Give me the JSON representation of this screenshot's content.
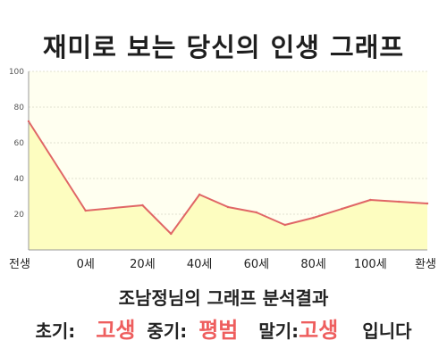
{
  "title": "재미로 보는 당신의 인생 그래프",
  "chart_data": {
    "type": "area",
    "x_labels": [
      "전생",
      "0세",
      "20세",
      "40세",
      "60세",
      "80세",
      "100세",
      "환생"
    ],
    "x": [
      -20,
      0,
      20,
      30,
      40,
      50,
      60,
      70,
      80,
      90,
      100,
      110,
      120
    ],
    "values": [
      72,
      22,
      25,
      9,
      31,
      24,
      21,
      14,
      18,
      23,
      28,
      27,
      26
    ],
    "y_ticks": [
      20,
      40,
      60,
      80,
      100
    ],
    "ylim": [
      0,
      100
    ],
    "xlim": [
      -20,
      120
    ],
    "grid": true,
    "colors": {
      "line": "#e06666",
      "fill": "#fdfdc0",
      "background": "#fffff0",
      "grid": "#e0e0d0"
    }
  },
  "summary": {
    "heading": "조남정님의 그래프 분석결과",
    "early_label": "초기:",
    "early_value": "고생",
    "mid_label": "중기:",
    "mid_value": "평범",
    "late_label": "말기:",
    "late_value": "고생",
    "ending": "입니다"
  }
}
